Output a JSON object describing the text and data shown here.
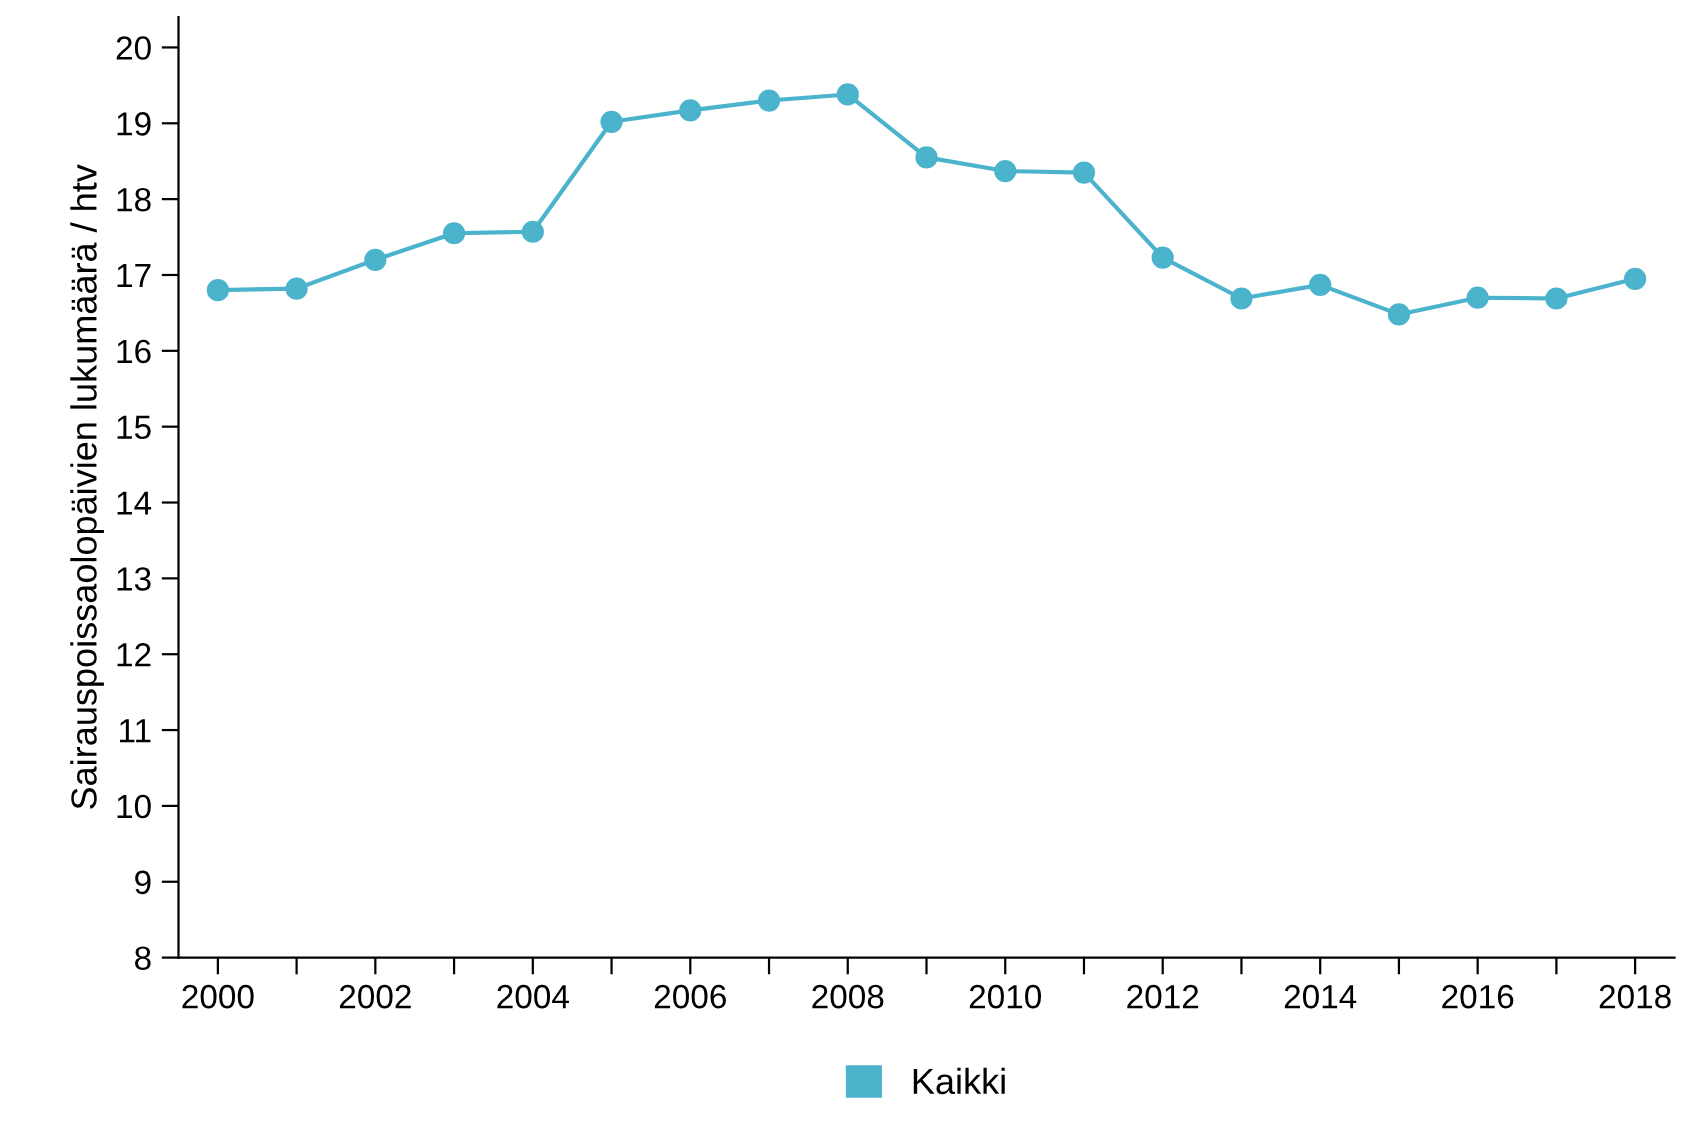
{
  "chart_data": {
    "type": "line",
    "ylabel": "Sairauspoissaolopäivien lukumäärä / htv",
    "x": [
      2000,
      2001,
      2002,
      2003,
      2004,
      2005,
      2006,
      2007,
      2008,
      2009,
      2010,
      2011,
      2012,
      2013,
      2014,
      2015,
      2016,
      2017,
      2018
    ],
    "series": [
      {
        "name": "Kaikki",
        "color": "#4bb3cc",
        "values": [
          16.8,
          16.82,
          17.2,
          17.55,
          17.57,
          19.02,
          19.17,
          19.3,
          19.38,
          18.55,
          18.37,
          18.35,
          17.23,
          16.69,
          16.87,
          16.48,
          16.7,
          16.69,
          16.95
        ]
      }
    ],
    "xlim": [
      1999.5,
      2018.5
    ],
    "ylim": [
      8,
      20.4
    ],
    "xticks": [
      2000,
      {
        "value": 2001,
        "label": null
      },
      2002,
      {
        "value": 2003,
        "label": null
      },
      2004,
      {
        "value": 2005,
        "label": null
      },
      2006,
      {
        "value": 2007,
        "label": null
      },
      2008,
      {
        "value": 2009,
        "label": null
      },
      2010,
      {
        "value": 2011,
        "label": null
      },
      2012,
      {
        "value": 2013,
        "label": null
      },
      2014,
      {
        "value": 2015,
        "label": null
      },
      2016,
      {
        "value": 2017,
        "label": null
      },
      2018
    ],
    "yticks": [
      8,
      9,
      10,
      11,
      12,
      13,
      14,
      15,
      16,
      17,
      18,
      19,
      20
    ],
    "grid": false,
    "legend": "bottom",
    "marker": "circle",
    "line_style": "solid"
  }
}
